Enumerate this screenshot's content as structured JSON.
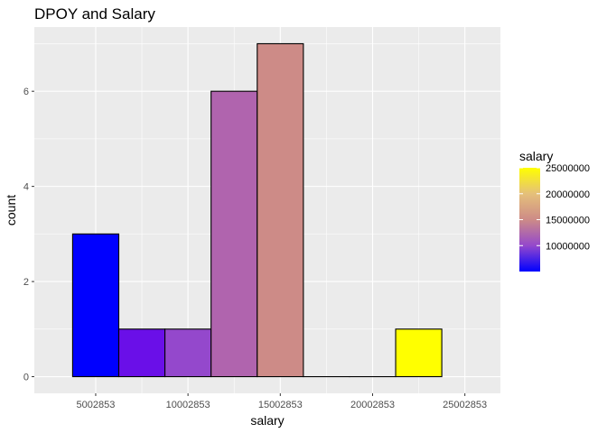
{
  "chart_data": {
    "type": "bar",
    "title": "DPOY and Salary",
    "xlabel": "salary",
    "ylabel": "count",
    "bin_width": 2500000,
    "x_breaks": [
      5002853,
      10002853,
      15002853,
      20002853,
      25002853
    ],
    "x_tick_labels": [
      "5002853",
      "10002853",
      "15002853",
      "20002853",
      "25002853"
    ],
    "xlim": [
      1677853,
      26927853
    ],
    "y_breaks": [
      0,
      2,
      4,
      6
    ],
    "y_tick_labels": [
      "0",
      "2",
      "4",
      "6"
    ],
    "ylim": [
      -0.35,
      7.35
    ],
    "bins": [
      {
        "center": 5002853,
        "count": 3,
        "fill": "#0000ff"
      },
      {
        "center": 7502853,
        "count": 1,
        "fill": "#6a0fe8"
      },
      {
        "center": 10002853,
        "count": 1,
        "fill": "#9448cc"
      },
      {
        "center": 12502853,
        "count": 6,
        "fill": "#b064ae"
      },
      {
        "center": 15002853,
        "count": 7,
        "fill": "#cd8b87"
      },
      {
        "center": 17502853,
        "count": 0,
        "fill": "#d6a58b"
      },
      {
        "center": 20002853,
        "count": 0,
        "fill": "#e5c07a"
      },
      {
        "center": 22502853,
        "count": 1,
        "fill": "#ffff00"
      }
    ],
    "grid": true,
    "panel_background": "#ebebeb",
    "grid_color": "#ffffff",
    "bar_outline": "#000000",
    "legend": {
      "title": "salary",
      "position": "right",
      "breaks": [
        10000000,
        15000000,
        20000000,
        25000000
      ],
      "labels": [
        "10000000",
        "15000000",
        "20000000",
        "25000000"
      ],
      "range": [
        5002853,
        25002853
      ],
      "gradient": [
        "#0000ff",
        "#9448cc",
        "#cd8b87",
        "#e5c07a",
        "#ffff00"
      ]
    }
  }
}
